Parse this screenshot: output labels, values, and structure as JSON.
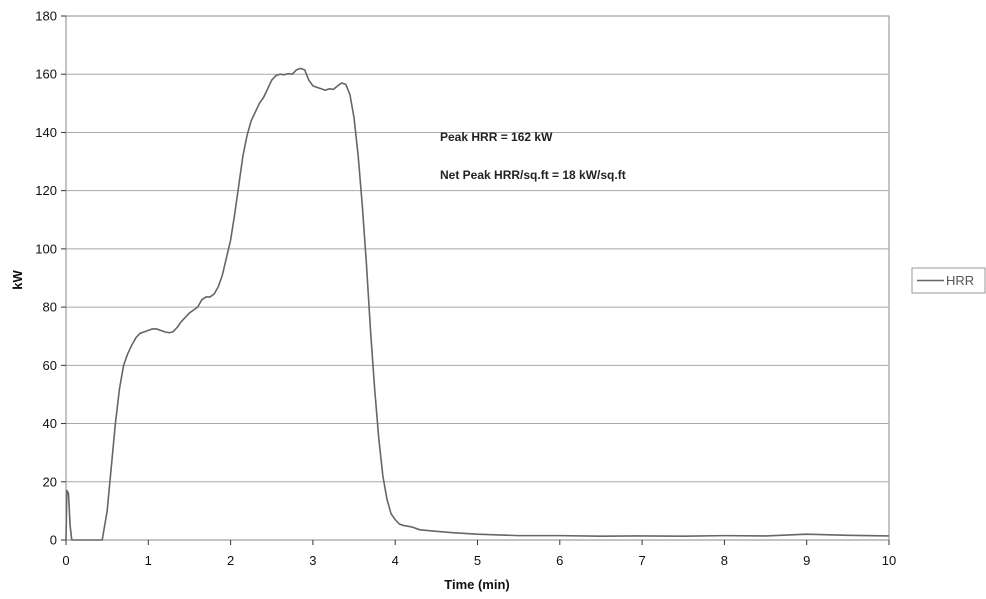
{
  "chart_data": {
    "type": "line",
    "title": "",
    "xlabel": "Time (min)",
    "ylabel": "kW",
    "xlim": [
      0,
      10
    ],
    "ylim": [
      0,
      180
    ],
    "x_ticks": [
      "0",
      "1",
      "2",
      "3",
      "4",
      "5",
      "6",
      "7",
      "8",
      "9",
      "10"
    ],
    "y_ticks": [
      "0",
      "20",
      "40",
      "60",
      "80",
      "100",
      "120",
      "140",
      "160",
      "180"
    ],
    "grid": "horizontal",
    "legend_position": "right",
    "annotations": [
      "Peak HRR = 162 kW",
      "Net Peak HRR/sq.ft = 18 kW/sq.ft"
    ],
    "line_color": "#666666",
    "series": [
      {
        "name": "HRR",
        "points": [
          [
            0.0,
            0
          ],
          [
            0.01,
            17
          ],
          [
            0.03,
            16
          ],
          [
            0.05,
            5
          ],
          [
            0.07,
            0
          ],
          [
            0.2,
            0
          ],
          [
            0.3,
            0
          ],
          [
            0.44,
            0
          ],
          [
            0.5,
            10
          ],
          [
            0.55,
            25
          ],
          [
            0.6,
            40
          ],
          [
            0.65,
            52
          ],
          [
            0.7,
            60
          ],
          [
            0.75,
            64
          ],
          [
            0.8,
            67
          ],
          [
            0.85,
            69.5
          ],
          [
            0.9,
            71
          ],
          [
            0.95,
            71.5
          ],
          [
            1.0,
            72
          ],
          [
            1.05,
            72.5
          ],
          [
            1.1,
            72.5
          ],
          [
            1.15,
            72
          ],
          [
            1.2,
            71.5
          ],
          [
            1.25,
            71.2
          ],
          [
            1.3,
            71.5
          ],
          [
            1.35,
            73
          ],
          [
            1.4,
            75
          ],
          [
            1.45,
            76.5
          ],
          [
            1.5,
            78
          ],
          [
            1.55,
            79
          ],
          [
            1.6,
            80
          ],
          [
            1.65,
            82.5
          ],
          [
            1.7,
            83.5
          ],
          [
            1.75,
            83.5
          ],
          [
            1.8,
            84.5
          ],
          [
            1.85,
            87
          ],
          [
            1.9,
            91
          ],
          [
            1.95,
            97
          ],
          [
            2.0,
            103
          ],
          [
            2.05,
            112
          ],
          [
            2.1,
            122
          ],
          [
            2.15,
            132
          ],
          [
            2.2,
            139
          ],
          [
            2.25,
            144
          ],
          [
            2.3,
            147
          ],
          [
            2.35,
            150
          ],
          [
            2.4,
            152
          ],
          [
            2.45,
            155
          ],
          [
            2.5,
            158
          ],
          [
            2.55,
            159.5
          ],
          [
            2.6,
            160
          ],
          [
            2.65,
            159.8
          ],
          [
            2.7,
            160.2
          ],
          [
            2.75,
            160
          ],
          [
            2.8,
            161.5
          ],
          [
            2.85,
            162
          ],
          [
            2.9,
            161.5
          ],
          [
            2.95,
            158
          ],
          [
            3.0,
            156
          ],
          [
            3.05,
            155.5
          ],
          [
            3.1,
            155
          ],
          [
            3.15,
            154.5
          ],
          [
            3.2,
            155
          ],
          [
            3.25,
            154.8
          ],
          [
            3.3,
            156
          ],
          [
            3.35,
            157
          ],
          [
            3.4,
            156.5
          ],
          [
            3.45,
            153
          ],
          [
            3.5,
            145
          ],
          [
            3.55,
            132
          ],
          [
            3.6,
            115
          ],
          [
            3.65,
            95
          ],
          [
            3.7,
            72
          ],
          [
            3.75,
            52
          ],
          [
            3.8,
            35
          ],
          [
            3.85,
            22
          ],
          [
            3.9,
            14
          ],
          [
            3.95,
            9
          ],
          [
            4.0,
            7
          ],
          [
            4.05,
            5.5
          ],
          [
            4.1,
            5
          ],
          [
            4.2,
            4.5
          ],
          [
            4.3,
            3.5
          ],
          [
            4.5,
            3
          ],
          [
            4.7,
            2.5
          ],
          [
            5.0,
            2
          ],
          [
            5.5,
            1.5
          ],
          [
            6.0,
            1.5
          ],
          [
            6.5,
            1.3
          ],
          [
            7.0,
            1.4
          ],
          [
            7.5,
            1.3
          ],
          [
            8.0,
            1.5
          ],
          [
            8.5,
            1.4
          ],
          [
            9.0,
            2
          ],
          [
            9.5,
            1.6
          ],
          [
            10.0,
            1.4
          ]
        ]
      }
    ]
  }
}
